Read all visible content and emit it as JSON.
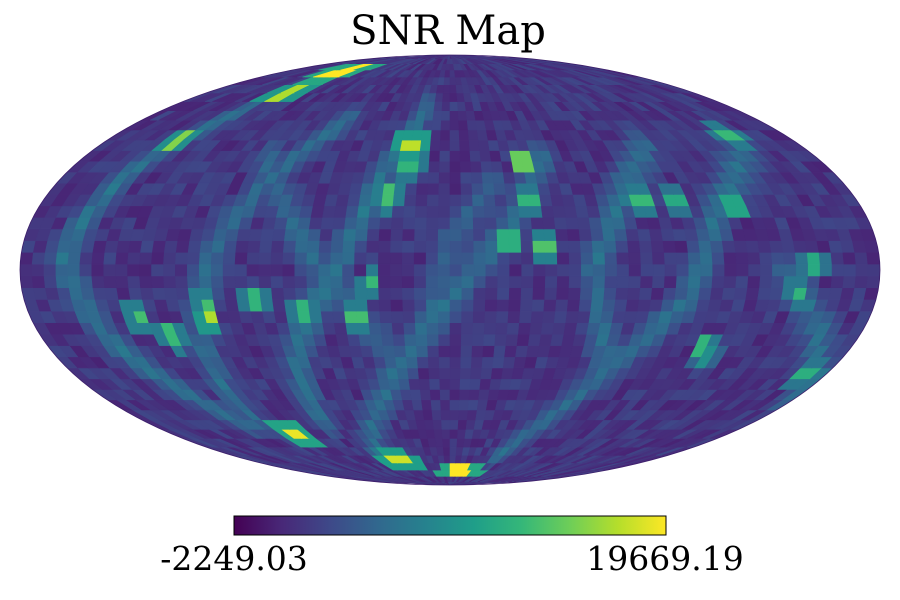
{
  "chart_data": {
    "type": "heatmap",
    "projection": "mollweide",
    "title": "SNR Map",
    "colormap": "viridis",
    "colorbar": {
      "min": -2249.03,
      "max": 19669.19,
      "min_label": "-2249.03",
      "max_label": "19669.19"
    },
    "background_value": 1200,
    "tracks": [
      {
        "value": 6500,
        "points": [
          [
            -130,
            58
          ],
          [
            -150,
            35
          ],
          [
            -162,
            5
          ],
          [
            -150,
            -25
          ],
          [
            -125,
            -55
          ]
        ]
      },
      {
        "value": 6000,
        "points": [
          [
            -60,
            55
          ],
          [
            -85,
            30
          ],
          [
            -100,
            5
          ],
          [
            -110,
            -25
          ],
          [
            -115,
            -55
          ]
        ]
      },
      {
        "value": 6500,
        "points": [
          [
            -15,
            60
          ],
          [
            -30,
            35
          ],
          [
            -45,
            5
          ],
          [
            -70,
            -30
          ],
          [
            -75,
            -55
          ]
        ]
      },
      {
        "value": 6000,
        "points": [
          [
            45,
            40
          ],
          [
            30,
            20
          ],
          [
            5,
            -5
          ],
          [
            -20,
            -30
          ],
          [
            -60,
            -70
          ]
        ]
      },
      {
        "value": 6000,
        "points": [
          [
            100,
            45
          ],
          [
            75,
            25
          ],
          [
            60,
            0
          ],
          [
            70,
            -30
          ]
        ]
      },
      {
        "value": 6000,
        "points": [
          [
            150,
            45
          ],
          [
            115,
            20
          ],
          [
            100,
            -10
          ],
          [
            75,
            -35
          ],
          [
            40,
            -70
          ]
        ]
      },
      {
        "value": 6000,
        "points": [
          [
            140,
            0
          ],
          [
            165,
            -25
          ],
          [
            180,
            -45
          ]
        ]
      },
      {
        "value": 5500,
        "points": [
          [
            -90,
            40
          ],
          [
            -70,
            20
          ],
          [
            -50,
            -5
          ],
          [
            -30,
            -25
          ]
        ]
      },
      {
        "value": 5000,
        "points": [
          [
            20,
            30
          ],
          [
            0,
            10
          ],
          [
            -10,
            -20
          ]
        ]
      }
    ],
    "hotspots": [
      {
        "lon": -118,
        "lat": 77,
        "value": 19669.19
      },
      {
        "lon": -120,
        "lat": 66,
        "value": 17000
      },
      {
        "lon": -142,
        "lat": 46,
        "value": 15500
      },
      {
        "lon": -20,
        "lat": 45,
        "value": 17500
      },
      {
        "lon": -19,
        "lat": 37,
        "value": 12000
      },
      {
        "lon": -27,
        "lat": 25,
        "value": 13000
      },
      {
        "lon": 35,
        "lat": 38,
        "value": 14500
      },
      {
        "lon": 35,
        "lat": 24,
        "value": 12000
      },
      {
        "lon": 25,
        "lat": 10,
        "value": 11500
      },
      {
        "lon": 40,
        "lat": 7,
        "value": 13500
      },
      {
        "lon": 84,
        "lat": 24,
        "value": 12500
      },
      {
        "lon": 100,
        "lat": 25,
        "value": 11000
      },
      {
        "lon": 125,
        "lat": 22,
        "value": 10500
      },
      {
        "lon": 150,
        "lat": 48,
        "value": 12500
      },
      {
        "lon": 153,
        "lat": 2,
        "value": 11000
      },
      {
        "lon": 146,
        "lat": -7,
        "value": 12000
      },
      {
        "lon": 114,
        "lat": -26,
        "value": 12000
      },
      {
        "lon": 117,
        "lat": -30,
        "value": 8500
      },
      {
        "lon": 171,
        "lat": -35,
        "value": 11500
      },
      {
        "lon": -34,
        "lat": -5,
        "value": 12500
      },
      {
        "lon": -62,
        "lat": -14,
        "value": 12000
      },
      {
        "lon": -40,
        "lat": -15,
        "value": 13000
      },
      {
        "lon": -83,
        "lat": -10,
        "value": 12000
      },
      {
        "lon": -134,
        "lat": -15,
        "value": 13000
      },
      {
        "lon": -104,
        "lat": -17,
        "value": 17000
      },
      {
        "lon": -104,
        "lat": -11,
        "value": 13000
      },
      {
        "lon": -122,
        "lat": -23,
        "value": 12500
      },
      {
        "lon": -100,
        "lat": -60,
        "value": 19000
      },
      {
        "lon": -45,
        "lat": -72,
        "value": 18000
      },
      {
        "lon": 12,
        "lat": -78,
        "value": 19669.19
      }
    ]
  }
}
